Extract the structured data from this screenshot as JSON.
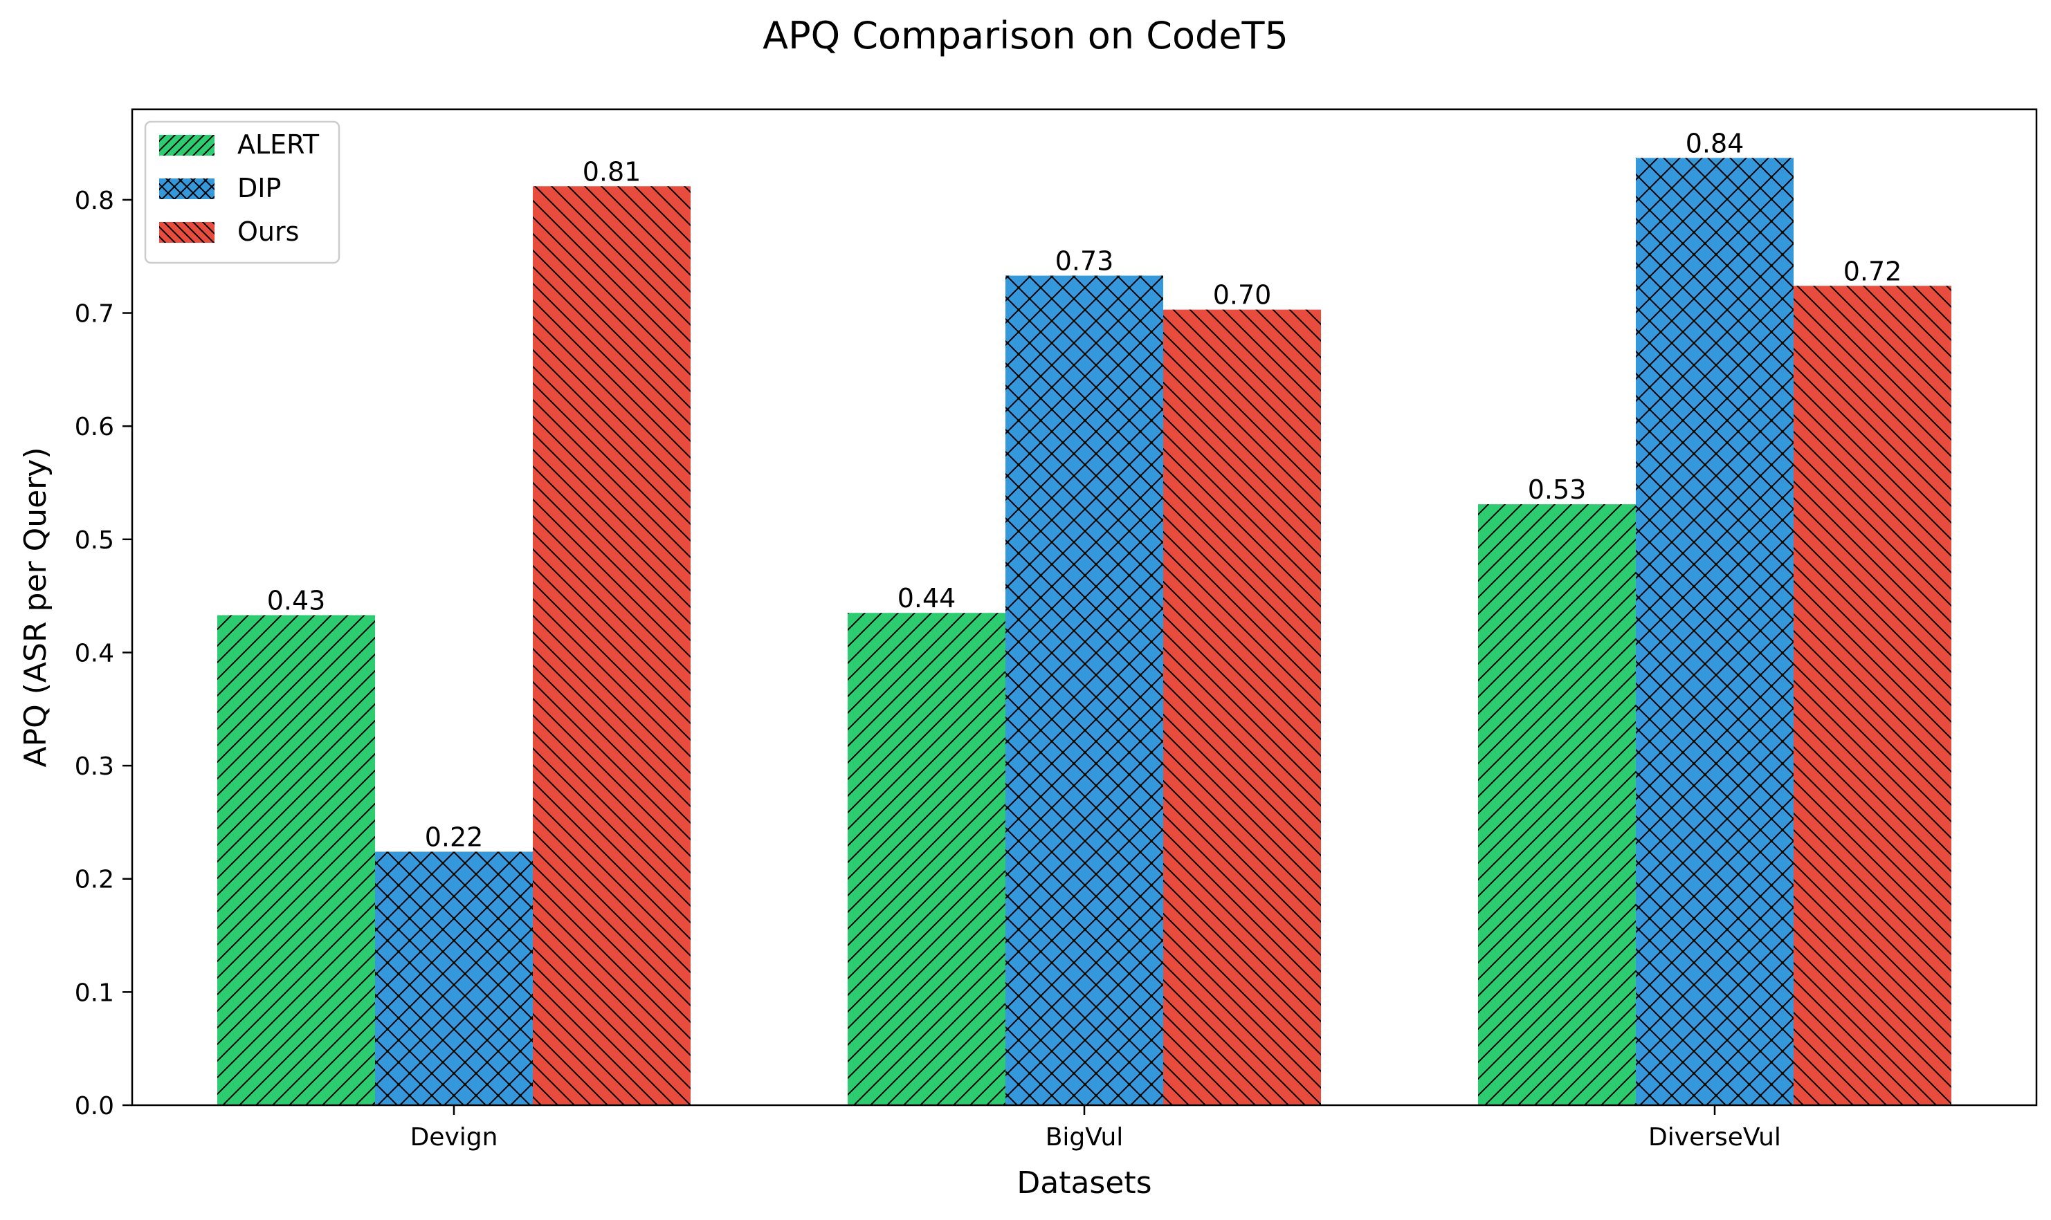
{
  "chart_data": {
    "type": "bar",
    "title": "APQ Comparison on CodeT5",
    "xlabel": "Datasets",
    "ylabel": "APQ (ASR per Query)",
    "categories": [
      "Devign",
      "BigVul",
      "DiverseVul"
    ],
    "ylim": [
      0,
      0.88
    ],
    "yticks": [
      0.0,
      0.1,
      0.2,
      0.3,
      0.4,
      0.5,
      0.6,
      0.7,
      0.8
    ],
    "ytick_labels": [
      "0.0",
      "0.1",
      "0.2",
      "0.3",
      "0.4",
      "0.5",
      "0.6",
      "0.7",
      "0.8"
    ],
    "grid": false,
    "legend_position": "top-left",
    "series": [
      {
        "name": "ALERT",
        "color": "#2ecc71",
        "hatch": "forward-diagonal",
        "values": [
          0.433,
          0.435,
          0.531
        ],
        "labels": [
          "0.43",
          "0.44",
          "0.53"
        ]
      },
      {
        "name": "DIP",
        "color": "#3498db",
        "hatch": "cross-diagonal",
        "values": [
          0.224,
          0.733,
          0.837
        ],
        "labels": [
          "0.22",
          "0.73",
          "0.84"
        ]
      },
      {
        "name": "Ours",
        "color": "#e74c3c",
        "hatch": "back-diagonal",
        "values": [
          0.812,
          0.703,
          0.724
        ],
        "labels": [
          "0.81",
          "0.70",
          "0.72"
        ]
      }
    ]
  }
}
